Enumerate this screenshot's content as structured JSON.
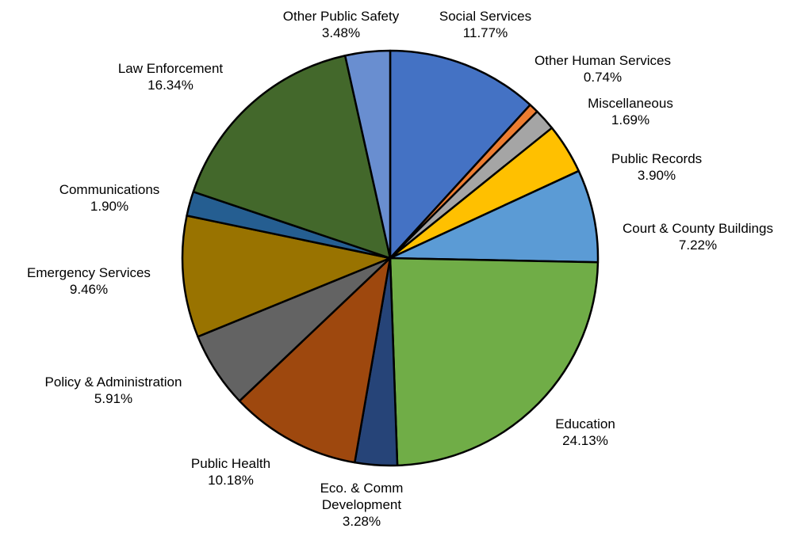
{
  "chart_data": {
    "type": "pie",
    "title": "",
    "start_angle_deg": 0,
    "direction": "clockwise",
    "slices": [
      {
        "name": "Social Services",
        "value": 11.77,
        "pct_label": "11.77%",
        "color": "#4472C4"
      },
      {
        "name": "Other Human Services",
        "value": 0.74,
        "pct_label": "0.74%",
        "color": "#ED7D31"
      },
      {
        "name": "Miscellaneous",
        "value": 1.69,
        "pct_label": "1.69%",
        "color": "#A5A5A5"
      },
      {
        "name": "Public Records",
        "value": 3.9,
        "pct_label": "3.90%",
        "color": "#FFC000"
      },
      {
        "name": "Court & County Buildings",
        "value": 7.22,
        "pct_label": "7.22%",
        "color": "#5B9BD5"
      },
      {
        "name": "Education",
        "value": 24.13,
        "pct_label": "24.13%",
        "color": "#70AD47"
      },
      {
        "name": "Eco. & Comm Development",
        "value": 3.28,
        "pct_label": "3.28%",
        "color": "#264478"
      },
      {
        "name": "Public Health",
        "value": 10.18,
        "pct_label": "10.18%",
        "color": "#9E480E"
      },
      {
        "name": "Policy & Administration",
        "value": 5.91,
        "pct_label": "5.91%",
        "color": "#636363"
      },
      {
        "name": "Emergency Services",
        "value": 9.46,
        "pct_label": "9.46%",
        "color": "#997300"
      },
      {
        "name": "Communications",
        "value": 1.9,
        "pct_label": "1.90%",
        "color": "#255E91"
      },
      {
        "name": "Law Enforcement",
        "value": 16.34,
        "pct_label": "16.34%",
        "color": "#43682B"
      },
      {
        "name": "Other Public Safety",
        "value": 3.48,
        "pct_label": "3.48%",
        "color": "#698ED0"
      }
    ]
  }
}
